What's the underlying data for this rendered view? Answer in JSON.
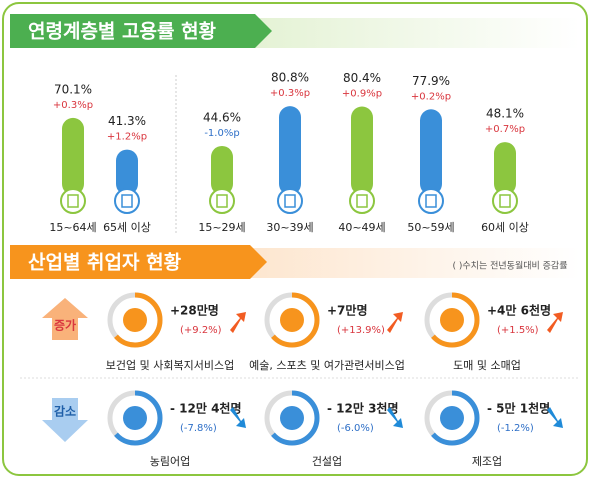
{
  "chart_data": {
    "type": "bar",
    "title": "연령계층별 고용률 현황",
    "categories": [
      "15~64세",
      "65세 이상",
      "15~29세",
      "30~39세",
      "40~49세",
      "50~59세",
      "60세 이상"
    ],
    "values": [
      70.1,
      41.3,
      44.6,
      80.8,
      80.4,
      77.9,
      48.1
    ],
    "value_labels": [
      "70.1%",
      "41.3%",
      "44.6%",
      "80.8%",
      "80.4%",
      "77.9%",
      "48.1%"
    ],
    "changes": [
      0.3,
      1.2,
      -1.0,
      0.3,
      0.9,
      0.2,
      0.7
    ],
    "change_labels": [
      "+0.3%p",
      "+1.2%p",
      "-1.0%p",
      "+0.3%p",
      "+0.9%p",
      "+0.2%p",
      "+0.7%p"
    ],
    "colors": [
      "#8cc63f",
      "#3a8fd9",
      "#8cc63f",
      "#3a8fd9",
      "#8cc63f",
      "#3a8fd9",
      "#8cc63f"
    ]
  },
  "industry": {
    "title": "산업별 취업자 현황",
    "note": "( )수치는 전년동월대비 증감률",
    "increase": {
      "label": "증가",
      "items": [
        {
          "name": "보건업 및 사회복지서비스업",
          "change": "+28만명",
          "rate": "(+9.2%)"
        },
        {
          "name": "예술, 스포츠 및 여가관련서비스업",
          "change": "+7만명",
          "rate": "(+13.9%)"
        },
        {
          "name": "도매 및 소매업",
          "change": "+4만 6천명",
          "rate": "(+1.5%)"
        }
      ]
    },
    "decrease": {
      "label": "감소",
      "items": [
        {
          "name": "농림어업",
          "change": "- 12만 4천명",
          "rate": "(-7.8%)"
        },
        {
          "name": "건설업",
          "change": "- 12만 3천명",
          "rate": "(-6.0%)"
        },
        {
          "name": "제조업",
          "change": "- 5만 1천명",
          "rate": "(-1.2%)"
        }
      ]
    }
  }
}
